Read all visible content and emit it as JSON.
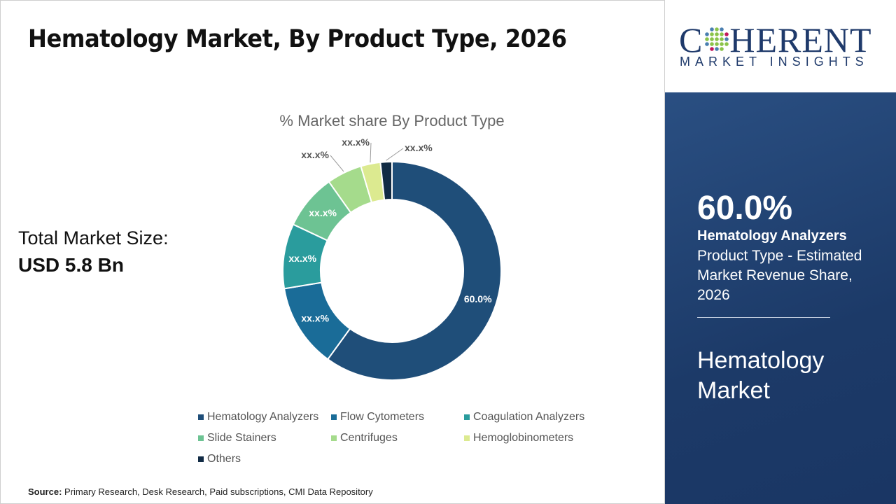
{
  "title": "Hematology Market, By Product Type, 2026",
  "total_market": {
    "label": "Total Market Size:",
    "value": "USD 5.8 Bn"
  },
  "source": {
    "label": "Source:",
    "text": "Primary Research, Desk Research, Paid subscriptions, CMI Data Repository"
  },
  "logo": {
    "name": "COHERENT",
    "tagline": "MARKET INSIGHTS"
  },
  "highlight": {
    "percent": "60.0%",
    "segment": "Hematology Analyzers",
    "description": "Product Type - Estimated Market Revenue Share, 2026",
    "market": "Hematology Market"
  },
  "chart_data": {
    "type": "pie",
    "donut": true,
    "title": "% Market share By Product Type",
    "categories": [
      "Hematology Analyzers",
      "Flow Cytometers",
      "Coagulation Analyzers",
      "Slide Stainers",
      "Centrifuges",
      "Hemoglobinometers",
      "Others"
    ],
    "values": [
      60.0,
      12.4,
      9.6,
      8.2,
      5.2,
      2.9,
      1.7
    ],
    "labels": [
      "60.0%",
      "xx.x%",
      "xx.x%",
      "xx.x%",
      "xx.x%",
      "xx.x%",
      "xx.x%"
    ],
    "colors": [
      "#1f4e79",
      "#1a6c98",
      "#2a9c9d",
      "#6dc393",
      "#a5db8c",
      "#dcea90",
      "#112b45"
    ],
    "legend": "bottom"
  }
}
